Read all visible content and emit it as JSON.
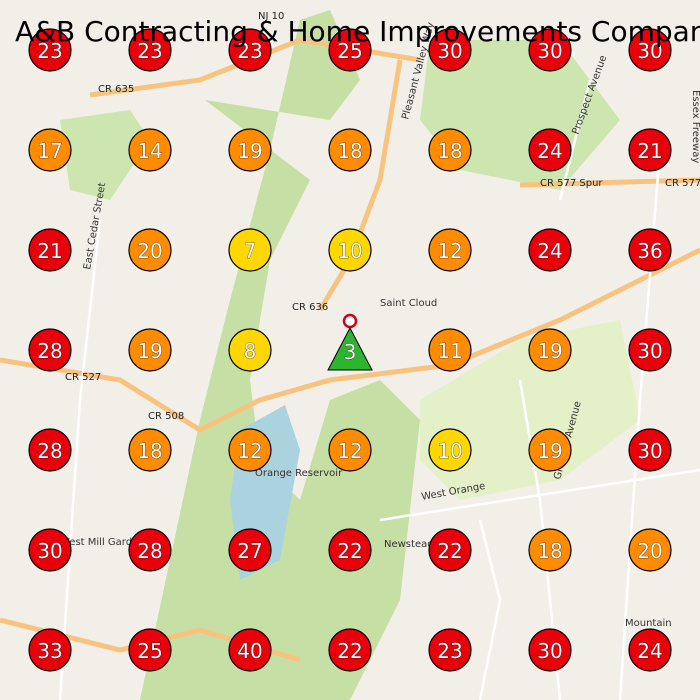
{
  "title": "A&B Contracting & Home Improvements Company",
  "grid": {
    "values": [
      [
        23,
        23,
        23,
        25,
        30,
        30,
        30
      ],
      [
        17,
        14,
        19,
        18,
        18,
        24,
        21
      ],
      [
        21,
        20,
        7,
        10,
        12,
        24,
        36
      ],
      [
        28,
        19,
        8,
        3,
        11,
        19,
        30
      ],
      [
        28,
        18,
        12,
        12,
        10,
        19,
        30
      ],
      [
        30,
        28,
        27,
        22,
        22,
        18,
        20
      ],
      [
        33,
        25,
        40,
        22,
        23,
        30,
        24
      ]
    ],
    "colors": [
      [
        "#e8000b",
        "#e8000b",
        "#e8000b",
        "#e8000b",
        "#e8000b",
        "#e8000b",
        "#e8000b"
      ],
      [
        "#ff8c00",
        "#ff8c00",
        "#ff8c00",
        "#ff8c00",
        "#ff8c00",
        "#e8000b",
        "#e8000b"
      ],
      [
        "#e8000b",
        "#ff8c00",
        "#ffd700",
        "#ffd700",
        "#ff8c00",
        "#e8000b",
        "#e8000b"
      ],
      [
        "#e8000b",
        "#ff8c00",
        "#ffd700",
        "#2db52d",
        "#ff8c00",
        "#ff8c00",
        "#e8000b"
      ],
      [
        "#e8000b",
        "#ff8c00",
        "#ff8c00",
        "#ff8c00",
        "#ffd700",
        "#ff8c00",
        "#e8000b"
      ],
      [
        "#e8000b",
        "#e8000b",
        "#e8000b",
        "#e8000b",
        "#e8000b",
        "#ff8c00",
        "#ff8c00"
      ],
      [
        "#e8000b",
        "#e8000b",
        "#e8000b",
        "#e8000b",
        "#e8000b",
        "#e8000b",
        "#e8000b"
      ]
    ]
  },
  "map_labels": [
    "CR 635",
    "CR 636",
    "CR 527",
    "CR 508",
    "CR 577 Spur",
    "CR 577",
    "NJ 10",
    "Saint Cloud",
    "Newstead",
    "West Orange",
    "Orange Reservoir",
    "Mountain",
    "Prospect Avenue",
    "Pleasant Valley Way",
    "East Cedar Street",
    "Gregory Avenue",
    "Essex Freeway",
    "West Mill Gardens"
  ]
}
